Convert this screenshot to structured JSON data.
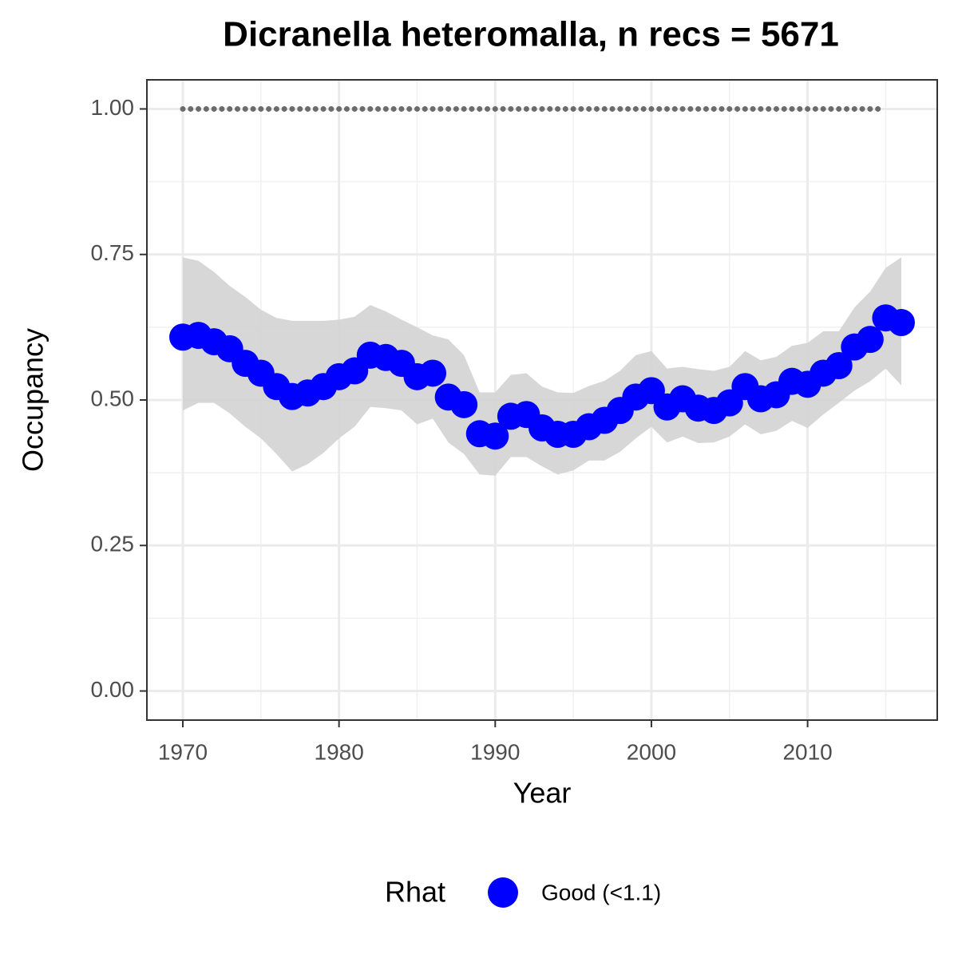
{
  "chart_data": {
    "type": "line",
    "title": "Dicranella heteromalla, n recs = 5671",
    "x_label": "Year",
    "y_label": "Occupancy",
    "x": [
      1970,
      1971,
      1972,
      1973,
      1974,
      1975,
      1976,
      1977,
      1978,
      1979,
      1980,
      1981,
      1982,
      1983,
      1984,
      1985,
      1986,
      1987,
      1988,
      1989,
      1990,
      1991,
      1992,
      1993,
      1994,
      1995,
      1996,
      1997,
      1998,
      1999,
      2000,
      2001,
      2002,
      2003,
      2004,
      2005,
      2006,
      2007,
      2008,
      2009,
      2010,
      2011,
      2012,
      2013,
      2014,
      2015,
      2016
    ],
    "series": [
      {
        "name": "Good (<1.1)",
        "color": "#0000ff",
        "values": [
          0.608,
          0.611,
          0.6,
          0.588,
          0.563,
          0.546,
          0.523,
          0.506,
          0.512,
          0.523,
          0.54,
          0.55,
          0.577,
          0.573,
          0.563,
          0.54,
          0.546,
          0.505,
          0.492,
          0.442,
          0.438,
          0.472,
          0.475,
          0.452,
          0.441,
          0.441,
          0.454,
          0.465,
          0.482,
          0.505,
          0.516,
          0.488,
          0.502,
          0.486,
          0.482,
          0.495,
          0.523,
          0.502,
          0.509,
          0.532,
          0.527,
          0.546,
          0.559,
          0.591,
          0.604,
          0.641,
          0.633
        ],
        "lower": [
          0.482,
          0.495,
          0.495,
          0.477,
          0.454,
          0.434,
          0.407,
          0.377,
          0.39,
          0.409,
          0.434,
          0.454,
          0.488,
          0.486,
          0.482,
          0.458,
          0.468,
          0.427,
          0.407,
          0.372,
          0.37,
          0.402,
          0.402,
          0.386,
          0.372,
          0.379,
          0.396,
          0.396,
          0.411,
          0.434,
          0.454,
          0.427,
          0.437,
          0.426,
          0.427,
          0.437,
          0.458,
          0.441,
          0.447,
          0.464,
          0.452,
          0.475,
          0.495,
          0.516,
          0.532,
          0.554,
          0.525
        ],
        "upper": [
          0.745,
          0.739,
          0.72,
          0.696,
          0.677,
          0.655,
          0.641,
          0.636,
          0.636,
          0.636,
          0.638,
          0.643,
          0.663,
          0.652,
          0.638,
          0.625,
          0.611,
          0.604,
          0.577,
          0.513,
          0.513,
          0.543,
          0.546,
          0.523,
          0.513,
          0.512,
          0.524,
          0.533,
          0.55,
          0.577,
          0.584,
          0.554,
          0.557,
          0.553,
          0.55,
          0.557,
          0.584,
          0.568,
          0.574,
          0.593,
          0.598,
          0.618,
          0.618,
          0.659,
          0.686,
          0.727,
          0.745
        ]
      }
    ],
    "band_color": "#d3d3d3",
    "reference_line": {
      "y": 1,
      "x_start": 1970,
      "x_end": 2015,
      "color": "#6b6b6b"
    },
    "xlim": [
      1967.7,
      2018.3
    ],
    "ylim": [
      -0.05,
      1.05
    ],
    "xticks": [
      1970,
      1980,
      1990,
      2000,
      2010
    ],
    "yticks": [
      {
        "value": 0,
        "label": "0.00"
      },
      0.25,
      {
        "value": 0.5,
        "label": "0.50"
      },
      0.75,
      {
        "value": 1,
        "label": "1.00"
      }
    ],
    "xminor": [
      1975,
      1985,
      1995,
      2005,
      2015
    ],
    "yminor": [
      0.125,
      0.375,
      0.625,
      0.875
    ],
    "grid": true,
    "legend_title": "Rhat",
    "legend_position": "bottom"
  }
}
